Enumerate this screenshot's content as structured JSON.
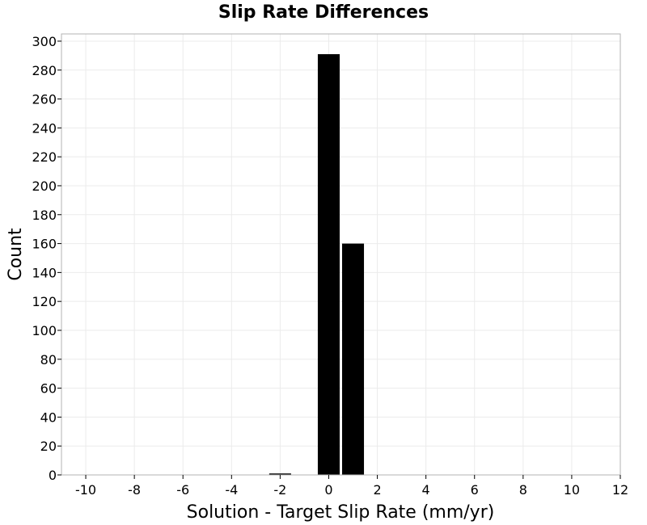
{
  "chart_data": {
    "type": "bar",
    "title": "Slip Rate Differences",
    "xlabel": "Solution - Target Slip Rate (mm/yr)",
    "ylabel": "Count",
    "xlim": [
      -11,
      12
    ],
    "ylim": [
      0,
      305
    ],
    "x_ticks": [
      -10,
      -8,
      -6,
      -4,
      -2,
      0,
      2,
      4,
      6,
      8,
      10,
      12
    ],
    "y_ticks": [
      0,
      20,
      40,
      60,
      80,
      100,
      120,
      140,
      160,
      180,
      200,
      220,
      240,
      260,
      280,
      300
    ],
    "bin_width": 1,
    "bins": [
      {
        "center": -2,
        "count": 1
      },
      {
        "center": -1,
        "count": 0
      },
      {
        "center": 0,
        "count": 291
      },
      {
        "center": 1,
        "count": 160
      }
    ],
    "grid": true,
    "bar_color": "#000000"
  }
}
